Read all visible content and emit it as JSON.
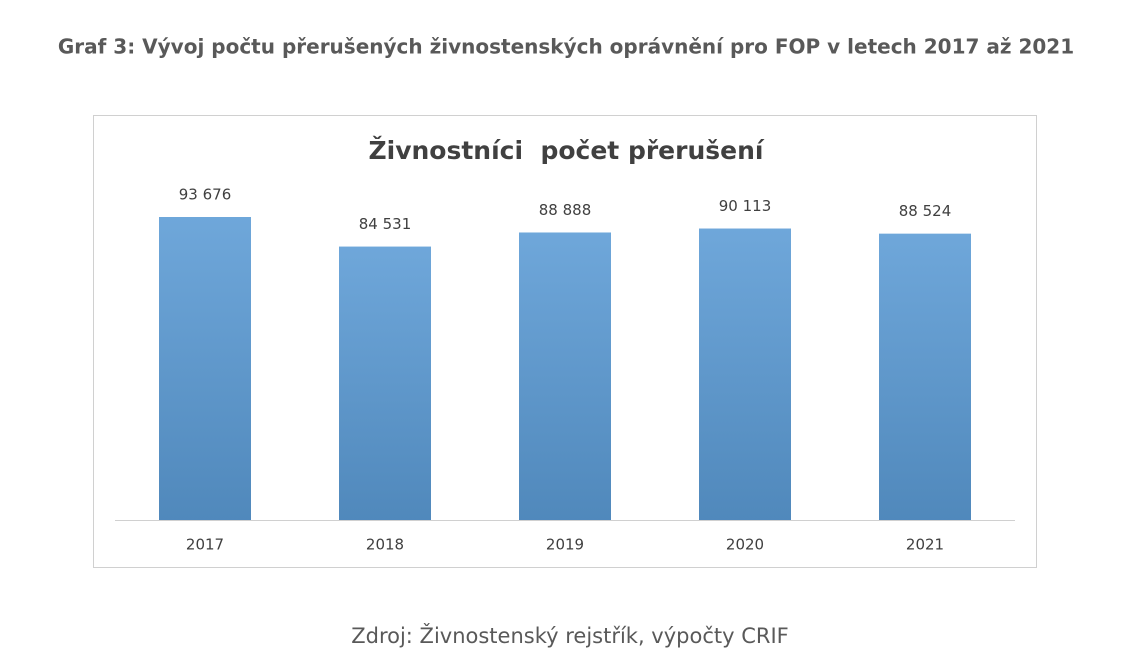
{
  "page_title": "Graf 3: Vývoj počtu přerušených živnostenských oprávnění pro FOP v letech 2017 až 2021",
  "chart_data": {
    "type": "bar",
    "title": "Živnostníci  počet přerušení",
    "categories": [
      "2017",
      "2018",
      "2019",
      "2020",
      "2021"
    ],
    "values": [
      93676,
      84531,
      88888,
      90113,
      88524
    ],
    "value_labels": [
      "93 676",
      "84 531",
      "88 888",
      "90 113",
      "88 524"
    ],
    "color": "#5b9bd5"
  },
  "source": "Zdroj: Živnostenský rejstřík, výpočty CRIF"
}
